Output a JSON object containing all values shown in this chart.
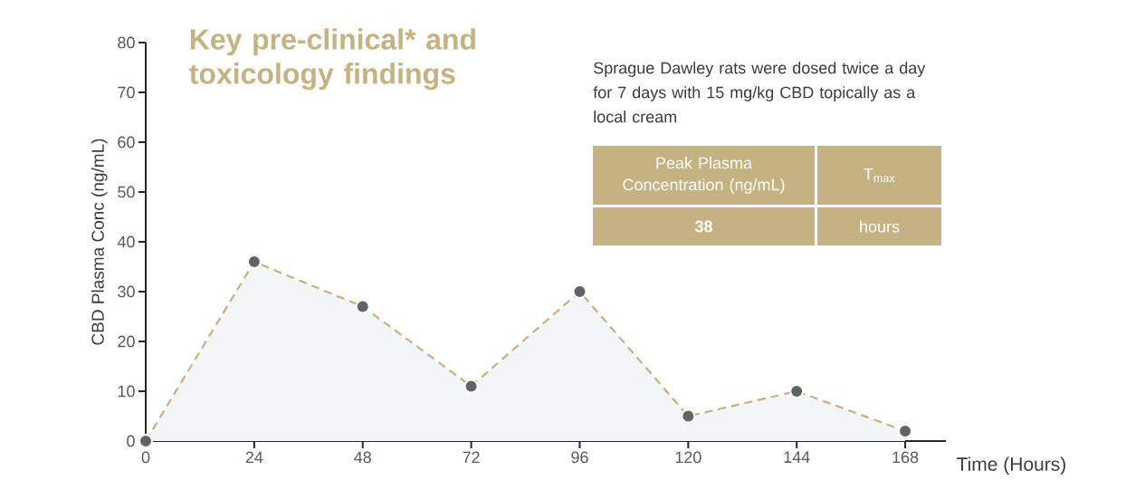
{
  "chart_data": {
    "type": "area",
    "title": "Key pre-clinical* and toxicology findings",
    "xlabel": "Time (Hours)",
    "ylabel": "CBD Plasma Conc (ng/mL)",
    "x": [
      0,
      24,
      48,
      72,
      96,
      120,
      144,
      168
    ],
    "series": [
      {
        "color": "#c4b283",
        "values": [
          0,
          36,
          27,
          11,
          30,
          5,
          10,
          2
        ]
      }
    ],
    "xlim": [
      0,
      177
    ],
    "ylim": [
      0,
      80
    ],
    "xticks": [
      0,
      24,
      48,
      72,
      96,
      120,
      144,
      168
    ],
    "yticks": [
      0,
      10,
      20,
      30,
      40,
      50,
      60,
      70,
      80
    ],
    "marker": "circle",
    "line_style": "dashed",
    "annotations": [
      "Sprague Dawley rats were dosed twice a day for 7 days with 15 mg/kg CBD topically as a local cream",
      "Peak Plasma Concentration (ng/mL)",
      "T$_{max}$",
      "38",
      "hours"
    ]
  }
}
